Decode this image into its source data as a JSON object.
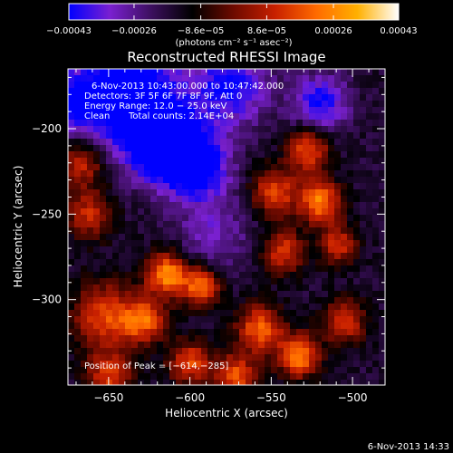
{
  "chart_data": {
    "type": "heatmap",
    "title": "Reconstructed RHESSI Image",
    "xlabel": "Heliocentric X (arcsec)",
    "ylabel": "Heliocentric Y (arcsec)",
    "xlim": [
      -675,
      -480
    ],
    "ylim": [
      -350,
      -165
    ],
    "x_ticks": [
      -650,
      -600,
      -550,
      -500
    ],
    "x_tick_labels": [
      "−650",
      "−600",
      "−550",
      "−500"
    ],
    "y_ticks": [
      -200,
      -250,
      -300
    ],
    "y_tick_labels": [
      "−200",
      "−250",
      "−300"
    ],
    "colorbar": {
      "min": -0.00043,
      "max": 0.00043,
      "ticks": [
        -0.00043,
        -0.00026,
        -8.6e-05,
        8.6e-05,
        0.00026,
        0.00043
      ],
      "tick_labels": [
        "−0.00043",
        "−0.00026",
        "−8.6e−05",
        "8.6e−05",
        "0.00026",
        "0.00043"
      ],
      "unit_label": "(photons cm⁻² s⁻¹ asec⁻²)",
      "colors": [
        "#0000ff",
        "#7a20d0",
        "#3c0f5e",
        "#000000",
        "#6e0a00",
        "#c82000",
        "#ff6a00",
        "#ffb000",
        "#ffffff"
      ]
    },
    "annotations": {
      "time_range": "6-Nov-2013 10:43:00.000 to 10:47:42.000",
      "detectors": "Detectors: 3F 5F 6F 7F 8F 9F, Att 0",
      "energy_range": "Energy Range: 12.0 − 25.0 keV",
      "algorithm": "Clean",
      "total_counts": "Total counts: 2.14E+04",
      "peak": "Position of Peak = [−614,−285]"
    },
    "peak_position": [
      -614,
      -285
    ],
    "grid": false,
    "legend": "none",
    "intensity_regions": [
      {
        "x": -637,
        "y": -180,
        "sigma": 22,
        "value": -0.00038
      },
      {
        "x": -617,
        "y": -208,
        "sigma": 15,
        "value": -0.00042
      },
      {
        "x": -596,
        "y": -222,
        "sigma": 14,
        "value": -0.00034
      },
      {
        "x": -575,
        "y": -175,
        "sigma": 16,
        "value": -0.00028
      },
      {
        "x": -520,
        "y": -185,
        "sigma": 12,
        "value": -0.00026
      },
      {
        "x": -672,
        "y": -185,
        "sigma": 14,
        "value": -0.00022
      },
      {
        "x": -585,
        "y": -262,
        "sigma": 16,
        "value": -0.00014
      },
      {
        "x": -548,
        "y": -237,
        "sigma": 10,
        "value": 0.00032
      },
      {
        "x": -527,
        "y": -212,
        "sigma": 9,
        "value": 0.00034
      },
      {
        "x": -520,
        "y": -243,
        "sigma": 9,
        "value": 0.0004
      },
      {
        "x": -543,
        "y": -272,
        "sigma": 9,
        "value": 0.0003
      },
      {
        "x": -509,
        "y": -268,
        "sigma": 8,
        "value": 0.00028
      },
      {
        "x": -667,
        "y": -220,
        "sigma": 10,
        "value": 0.00028
      },
      {
        "x": -662,
        "y": -250,
        "sigma": 10,
        "value": 0.00026
      },
      {
        "x": -652,
        "y": -310,
        "sigma": 14,
        "value": 0.00032
      },
      {
        "x": -614,
        "y": -285,
        "sigma": 9,
        "value": 0.00043
      },
      {
        "x": -593,
        "y": -292,
        "sigma": 8,
        "value": 0.00038
      },
      {
        "x": -628,
        "y": -312,
        "sigma": 9,
        "value": 0.00034
      },
      {
        "x": -557,
        "y": -317,
        "sigma": 10,
        "value": 0.00036
      },
      {
        "x": -533,
        "y": -333,
        "sigma": 9,
        "value": 0.0004
      },
      {
        "x": -505,
        "y": -313,
        "sigma": 9,
        "value": 0.0003
      },
      {
        "x": -600,
        "y": -337,
        "sigma": 9,
        "value": 0.00032
      },
      {
        "x": -572,
        "y": -345,
        "sigma": 9,
        "value": 0.00034
      },
      {
        "x": -650,
        "y": -345,
        "sigma": 10,
        "value": 0.00028
      }
    ]
  },
  "footer": {
    "timestamp": "6-Nov-2013 14:33"
  }
}
